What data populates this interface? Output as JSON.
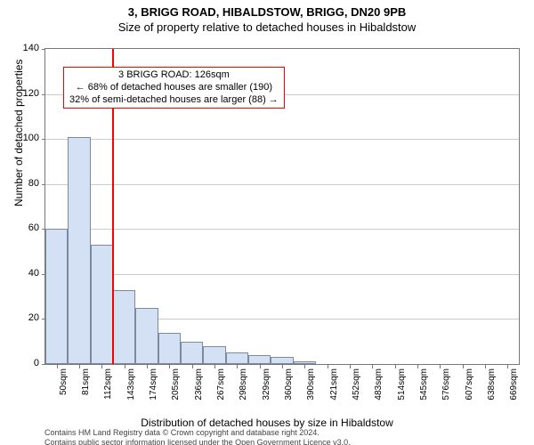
{
  "title_main": "3, BRIGG ROAD, HIBALDSTOW, BRIGG, DN20 9PB",
  "title_sub": "Size of property relative to detached houses in Hibaldstow",
  "chart": {
    "type": "histogram",
    "x_categories": [
      "50sqm",
      "81sqm",
      "112sqm",
      "143sqm",
      "174sqm",
      "205sqm",
      "236sqm",
      "267sqm",
      "298sqm",
      "329sqm",
      "360sqm",
      "390sqm",
      "421sqm",
      "452sqm",
      "483sqm",
      "514sqm",
      "545sqm",
      "576sqm",
      "607sqm",
      "638sqm",
      "669sqm"
    ],
    "values": [
      60,
      101,
      53,
      33,
      25,
      14,
      10,
      8,
      5,
      4,
      3,
      1,
      0,
      0,
      0,
      0,
      0,
      0,
      0,
      0,
      0
    ],
    "ylim": [
      0,
      140
    ],
    "y_ticks": [
      0,
      20,
      40,
      60,
      80,
      100,
      120,
      140
    ],
    "bar_fill": "#d4e1f5",
    "bar_stroke": "#7a8aa0",
    "grid_color": "#cccccc",
    "background": "#ffffff",
    "axis_color": "#777777",
    "y_axis_label": "Number of detached properties",
    "x_axis_label": "Distribution of detached houses by size in Hibaldstow",
    "label_fontsize": 12,
    "tick_fontsize": 11,
    "xtick_fontsize": 10,
    "reference_line": {
      "value_sqm": 126,
      "color": "#ff0000",
      "width": 2
    },
    "callout": {
      "lines": [
        "3 BRIGG ROAD: 126sqm",
        "← 68% of detached houses are smaller (190)",
        "32% of semi-detached houses are larger (88) →"
      ],
      "bg": "#ffffff",
      "border": "#ff0000"
    }
  },
  "footer": {
    "line1": "Contains HM Land Registry data © Crown copyright and database right 2024.",
    "line2": "Contains public sector information licensed under the Open Government Licence v3.0."
  }
}
